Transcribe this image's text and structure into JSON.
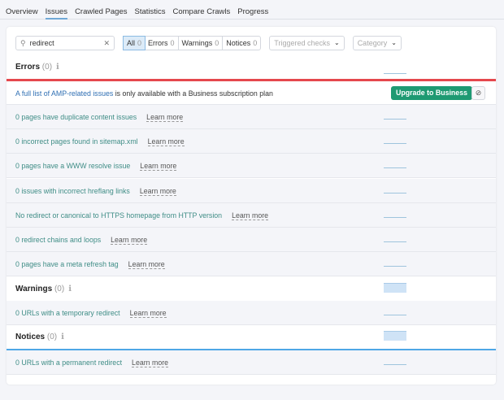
{
  "tabs": [
    "Overview",
    "Issues",
    "Crawled Pages",
    "Statistics",
    "Compare Crawls",
    "Progress"
  ],
  "active_tab": "Issues",
  "filters": {
    "search_value": "redirect",
    "segments": [
      {
        "label": "All",
        "count": "0"
      },
      {
        "label": "Errors",
        "count": "0"
      },
      {
        "label": "Warnings",
        "count": "0"
      },
      {
        "label": "Notices",
        "count": "0"
      }
    ],
    "triggered_placeholder": "Triggered checks",
    "category_placeholder": "Category"
  },
  "errors": {
    "title": "Errors",
    "count": "(0)",
    "color": "#e5484d",
    "amp": {
      "link": "A full list of AMP-related issues",
      "rest": " is only available with a Business subscription plan",
      "button": "Upgrade to Business"
    },
    "rows": [
      "0 pages have duplicate content issues",
      "0 incorrect pages found in sitemap.xml",
      "0 pages have a WWW resolve issue",
      "0 issues with incorrect hreflang links",
      "No redirect or canonical to HTTPS homepage from HTTP version",
      "0 redirect chains and loops",
      "0 pages have a meta refresh tag"
    ]
  },
  "warnings": {
    "title": "Warnings",
    "count": "(0)",
    "color": "#f0874a",
    "rows": [
      "0 URLs with a temporary redirect"
    ]
  },
  "notices": {
    "title": "Notices",
    "count": "(0)",
    "color": "#4ea7e6",
    "rows": [
      "0 URLs with a permanent redirect"
    ]
  },
  "learn_more": "Learn more",
  "icons": {
    "search": "search-icon",
    "clear": "close-icon",
    "info": "info-icon",
    "hide": "hide-icon",
    "chevron": "chevron-down-icon"
  }
}
